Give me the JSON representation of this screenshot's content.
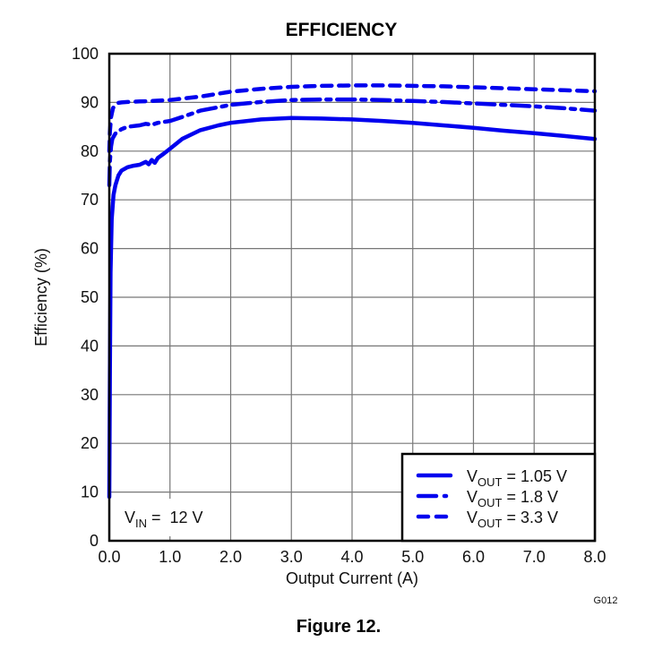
{
  "chart_data": {
    "type": "line",
    "title": "EFFICIENCY",
    "xlabel": "Output Current (A)",
    "ylabel": "Efficiency (%)",
    "xlim": [
      0,
      8
    ],
    "ylim": [
      0,
      100
    ],
    "xticks": [
      "0.0",
      "1.0",
      "2.0",
      "3.0",
      "4.0",
      "5.0",
      "6.0",
      "7.0",
      "8.0"
    ],
    "yticks": [
      "0",
      "10",
      "20",
      "30",
      "40",
      "50",
      "60",
      "70",
      "80",
      "90",
      "100"
    ],
    "grid": true,
    "legend_position": "bottom-right",
    "annotation": {
      "main": "V",
      "sub": "IN",
      "rest": " =  12 V"
    },
    "figure_code": "G012",
    "caption": "Figure 12.",
    "line_color": "#0000ee",
    "series": [
      {
        "name": "VOUT = 1.05 V",
        "label_main": "V",
        "label_sub": "OUT",
        "label_rest": " =  1.05 V",
        "style": "solid",
        "x": [
          0.0,
          0.01,
          0.02,
          0.04,
          0.07,
          0.1,
          0.15,
          0.2,
          0.3,
          0.4,
          0.5,
          0.6,
          0.65,
          0.7,
          0.75,
          0.8,
          0.9,
          1.0,
          1.2,
          1.5,
          1.8,
          2.0,
          2.5,
          3.0,
          3.5,
          4.0,
          4.5,
          5.0,
          5.5,
          6.0,
          6.5,
          7.0,
          7.5,
          8.0
        ],
        "y": [
          9,
          35,
          55,
          66,
          71,
          73,
          75,
          76,
          76.7,
          77,
          77.2,
          77.8,
          77.3,
          78.2,
          77.6,
          78.6,
          79.5,
          80.5,
          82.5,
          84.3,
          85.3,
          85.8,
          86.5,
          86.8,
          86.7,
          86.5,
          86.2,
          85.8,
          85.3,
          84.8,
          84.2,
          83.7,
          83.1,
          82.5
        ]
      },
      {
        "name": "VOUT = 1.8 V",
        "label_main": "V",
        "label_sub": "OUT",
        "label_rest": " =  1.8 V",
        "style": "dash-dot",
        "x": [
          0.0,
          0.01,
          0.03,
          0.05,
          0.1,
          0.2,
          0.3,
          0.5,
          0.6,
          0.7,
          0.8,
          1.0,
          1.2,
          1.5,
          2.0,
          2.5,
          3.0,
          3.5,
          4.0,
          4.5,
          5.0,
          5.5,
          6.0,
          6.5,
          7.0,
          7.5,
          8.0
        ],
        "y": [
          73,
          78,
          81,
          82.5,
          83.6,
          84.5,
          85,
          85.3,
          85.6,
          85.4,
          85.8,
          86.2,
          87,
          88.3,
          89.5,
          90.1,
          90.5,
          90.6,
          90.6,
          90.5,
          90.3,
          90.1,
          89.8,
          89.5,
          89.2,
          88.8,
          88.3
        ]
      },
      {
        "name": "VOUT = 3.3 V",
        "label_main": "V",
        "label_sub": "OUT",
        "label_rest": " =  3.3 V",
        "style": "dashed",
        "x": [
          0.0,
          0.01,
          0.03,
          0.06,
          0.1,
          0.15,
          0.2,
          0.3,
          0.5,
          0.7,
          1.0,
          1.5,
          2.0,
          2.5,
          3.0,
          3.5,
          4.0,
          4.5,
          5.0,
          5.5,
          6.0,
          6.5,
          7.0,
          7.5,
          8.0
        ],
        "y": [
          80,
          84,
          87,
          88.8,
          89.5,
          89.9,
          90,
          90.1,
          90.2,
          90.3,
          90.5,
          91.2,
          92.2,
          92.8,
          93.2,
          93.4,
          93.5,
          93.5,
          93.4,
          93.3,
          93.1,
          92.9,
          92.7,
          92.5,
          92.3
        ]
      }
    ]
  }
}
